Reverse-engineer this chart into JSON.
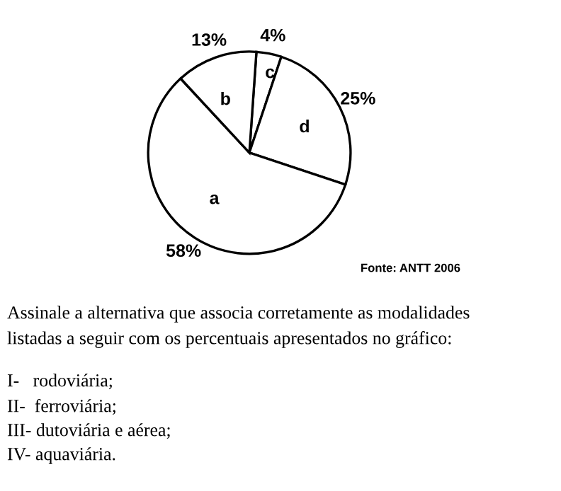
{
  "chart_data": {
    "type": "pie",
    "categories": [
      "c",
      "d",
      "a",
      "b"
    ],
    "values": [
      4,
      25,
      58,
      13
    ],
    "colors": [
      "#ffffff",
      "#ffffff",
      "#ffffff",
      "#ffffff"
    ],
    "value_labels": [
      "4%",
      "25%",
      "58%",
      "13%"
    ],
    "annotations": [
      "Fonte: ANTT 2006",
      "Assinale a alternativa que associa corretamente as modalidades",
      "listadas a seguir com os percentuais apresentados no gráfico:",
      "I-   rodoviária;",
      "II-  ferroviária;",
      "III- dutoviária e aérea;",
      "IV- aquaviária."
    ]
  }
}
